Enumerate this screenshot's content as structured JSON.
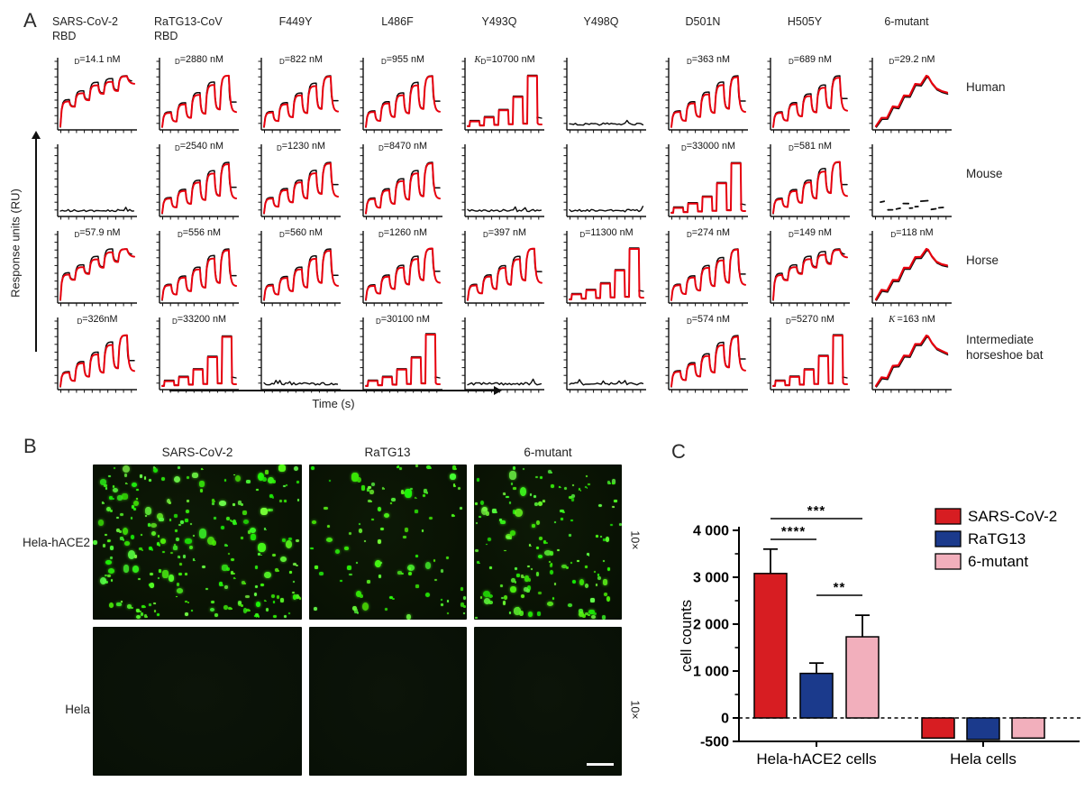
{
  "panelA": {
    "label": "A",
    "y_axis_label": "Response units (RU)",
    "x_axis_label": "Time (s)",
    "col_headers": [
      [
        "SARS-CoV-2",
        "RBD"
      ],
      [
        "RaTG13-CoV",
        "RBD"
      ],
      [
        "F449Y"
      ],
      [
        "L486F"
      ],
      [
        "Y493Q"
      ],
      [
        "Y498Q"
      ],
      [
        "D501N"
      ],
      [
        "H505Y"
      ],
      [
        "6-mutant"
      ]
    ],
    "row_labels": [
      [
        "Human"
      ],
      [
        "Mouse"
      ],
      [
        "Horse"
      ],
      [
        "Intermediate",
        "horseshoe bat"
      ]
    ],
    "curve_color_fit": "#e7000e",
    "curve_color_data": "#0a0a0a",
    "cells": [
      [
        {
          "kd_prefix": "D",
          "kd_value": "14.1 nM",
          "shape": "saturating"
        },
        {
          "kd_prefix": "D",
          "kd_value": "2880 nM",
          "shape": "peaks"
        },
        {
          "kd_prefix": "D",
          "kd_value": "822 nM",
          "shape": "peaks"
        },
        {
          "kd_prefix": "D",
          "kd_value": "955 nM",
          "shape": "peaks"
        },
        {
          "kd_prefix": "KD",
          "kd_value": "10700 nM",
          "shape": "square"
        },
        {
          "kd_prefix": "",
          "kd_value": "",
          "shape": "flat"
        },
        {
          "kd_prefix": "D",
          "kd_value": "363 nM",
          "shape": "peaks"
        },
        {
          "kd_prefix": "D",
          "kd_value": "689 nM",
          "shape": "peaks"
        },
        {
          "kd_prefix": "D",
          "kd_value": "29.2 nM",
          "shape": "jagged"
        }
      ],
      [
        {
          "kd_prefix": "",
          "kd_value": "",
          "shape": "flat"
        },
        {
          "kd_prefix": "D",
          "kd_value": "2540 nM",
          "shape": "peaks"
        },
        {
          "kd_prefix": "D",
          "kd_value": "1230 nM",
          "shape": "peaks"
        },
        {
          "kd_prefix": "D",
          "kd_value": "8470 nM",
          "shape": "peaks"
        },
        {
          "kd_prefix": "",
          "kd_value": "",
          "shape": "flat"
        },
        {
          "kd_prefix": "",
          "kd_value": "",
          "shape": "flat"
        },
        {
          "kd_prefix": "D",
          "kd_value": "33000 nM",
          "shape": "square"
        },
        {
          "kd_prefix": "D",
          "kd_value": "581 nM",
          "shape": "peaks"
        },
        {
          "kd_prefix": "",
          "kd_value": "",
          "shape": "noisy"
        }
      ],
      [
        {
          "kd_prefix": "D",
          "kd_value": "57.9 nM",
          "shape": "saturating"
        },
        {
          "kd_prefix": "D",
          "kd_value": "556 nM",
          "shape": "peaks"
        },
        {
          "kd_prefix": "D",
          "kd_value": "560 nM",
          "shape": "peaks"
        },
        {
          "kd_prefix": "D",
          "kd_value": "1260 nM",
          "shape": "peaks"
        },
        {
          "kd_prefix": "D",
          "kd_value": "397 nM",
          "shape": "peaks"
        },
        {
          "kd_prefix": "D",
          "kd_value": "11300 nM",
          "shape": "square"
        },
        {
          "kd_prefix": "D",
          "kd_value": "274 nM",
          "shape": "peaks"
        },
        {
          "kd_prefix": "D",
          "kd_value": "149 nM",
          "shape": "saturating"
        },
        {
          "kd_prefix": "D",
          "kd_value": "118 nM",
          "shape": "jagged"
        }
      ],
      [
        {
          "kd_prefix": "D",
          "kd_value": "326nM",
          "shape": "peaks"
        },
        {
          "kd_prefix": "D",
          "kd_value": "33200 nM",
          "shape": "square"
        },
        {
          "kd_prefix": "",
          "kd_value": "",
          "shape": "flat"
        },
        {
          "kd_prefix": "D",
          "kd_value": "30100 nM",
          "shape": "square"
        },
        {
          "kd_prefix": "",
          "kd_value": "",
          "shape": "flat"
        },
        {
          "kd_prefix": "",
          "kd_value": "",
          "shape": "flat"
        },
        {
          "kd_prefix": "D",
          "kd_value": "574 nM",
          "shape": "peaks"
        },
        {
          "kd_prefix": "D",
          "kd_value": "5270 nM",
          "shape": "square"
        },
        {
          "kd_prefix": "K",
          "kd_value": "163 nM",
          "shape": "jagged"
        }
      ]
    ]
  },
  "panelB": {
    "label": "B",
    "col_headers": [
      "SARS-CoV-2",
      "RaTG13",
      "6-mutant"
    ],
    "row_labels": [
      "Hela-hACE2",
      "Hela"
    ],
    "magnification": "10×",
    "dot_counts": [
      [
        220,
        90,
        135
      ],
      [
        0,
        0,
        0
      ]
    ],
    "scale_bar": true
  },
  "panelC": {
    "label": "C"
  },
  "chart_data": {
    "type": "bar",
    "title": "",
    "groups": [
      "Hela-hACE2 cells",
      "Hela cells"
    ],
    "series": [
      {
        "name": "SARS-CoV-2",
        "color": "#d71d22",
        "values": [
          3080,
          -430
        ],
        "errors": [
          520,
          0
        ]
      },
      {
        "name": "RaTG13",
        "color": "#1b3a8c",
        "values": [
          950,
          -460
        ],
        "errors": [
          220,
          0
        ]
      },
      {
        "name": "6-mutant",
        "color": "#f2afbc",
        "values": [
          1730,
          -430
        ],
        "errors": [
          460,
          0
        ]
      }
    ],
    "ylabel": "cell counts",
    "ylim": [
      -500,
      4000
    ],
    "ytick_values": [
      -500,
      0,
      1000,
      2000,
      3000,
      4000
    ],
    "ytick_labels": [
      "-500",
      "0",
      "1 000",
      "2 000",
      "3 000",
      "4 000"
    ],
    "zero_line": "dashed",
    "grid": false,
    "legend_position": "top-right",
    "significance": [
      {
        "group": 0,
        "pair": [
          0,
          2
        ],
        "label": "***"
      },
      {
        "group": 0,
        "pair": [
          0,
          1
        ],
        "label": "****"
      },
      {
        "group": 0,
        "pair": [
          1,
          2
        ],
        "label": "**"
      }
    ]
  }
}
